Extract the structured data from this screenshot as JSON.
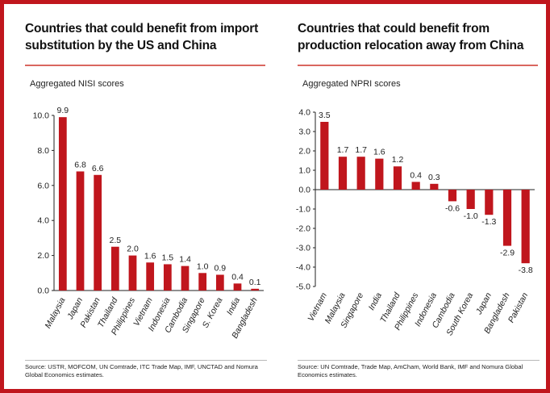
{
  "page": {
    "border_color": "#c0161d",
    "bar_color": "#c0161d"
  },
  "left": {
    "title": "Countries that could benefit from import substitution by the US and China",
    "subtitle": "Aggregated NISI scores",
    "source": "Source: USTR, MOFCOM, UN Comtrade, ITC Trade Map, IMF, UNCTAD and Nomura Global Economics estimates."
  },
  "right": {
    "title": "Countries that could benefit from production relocation away from China",
    "subtitle": "Aggregated NPRI scores",
    "source": "Source: UN Comtrade, Trade Map, AmCham, World Bank, IMF and Nomura Global Economics estimates."
  },
  "chart_data": [
    {
      "type": "bar",
      "title": "Countries that could benefit from import substitution by the US and China",
      "ylabel": "Aggregated NISI scores",
      "categories": [
        "Malaysia",
        "Japan",
        "Pakistan",
        "Thailand",
        "Philippines",
        "Vietnam",
        "Indonesia",
        "Cambodia",
        "Singapore",
        "S. Korea",
        "India",
        "Bangladesh"
      ],
      "values": [
        9.9,
        6.8,
        6.6,
        2.5,
        2.0,
        1.6,
        1.5,
        1.4,
        1.0,
        0.9,
        0.4,
        0.1
      ],
      "value_labels": [
        "9.9",
        "6.8",
        "6.6",
        "2.5",
        "2.0",
        "1.6",
        "1.5",
        "1.4",
        "1.0",
        "0.9",
        "0.4",
        "0.1"
      ],
      "ylim": [
        0,
        10
      ],
      "yticks": [
        "0.0",
        "2.0",
        "4.0",
        "6.0",
        "8.0",
        "10.0"
      ],
      "grid": false,
      "color": "#c0161d"
    },
    {
      "type": "bar",
      "title": "Countries that could benefit from production relocation away from China",
      "ylabel": "Aggregated NPRI scores",
      "categories": [
        "Vietnam",
        "Malaysia",
        "Singapore",
        "India",
        "Thailand",
        "Philippines",
        "Indonesia",
        "Cambodia",
        "South Korea",
        "Japan",
        "Bangladesh",
        "Pakistan"
      ],
      "values": [
        3.5,
        1.7,
        1.7,
        1.6,
        1.2,
        0.4,
        0.3,
        -0.6,
        -1.0,
        -1.3,
        -2.9,
        -3.8
      ],
      "value_labels": [
        "3.5",
        "1.7",
        "1.7",
        "1.6",
        "1.2",
        "0.4",
        "0.3",
        "-0.6",
        "-1.0",
        "-1.3",
        "-2.9",
        "-3.8"
      ],
      "ylim": [
        -5,
        4
      ],
      "yticks": [
        "4.0",
        "3.0",
        "2.0",
        "1.0",
        "0.0",
        "-1.0",
        "-2.0",
        "-3.0",
        "-4.0",
        "-5.0"
      ],
      "grid": false,
      "color": "#c0161d"
    }
  ]
}
